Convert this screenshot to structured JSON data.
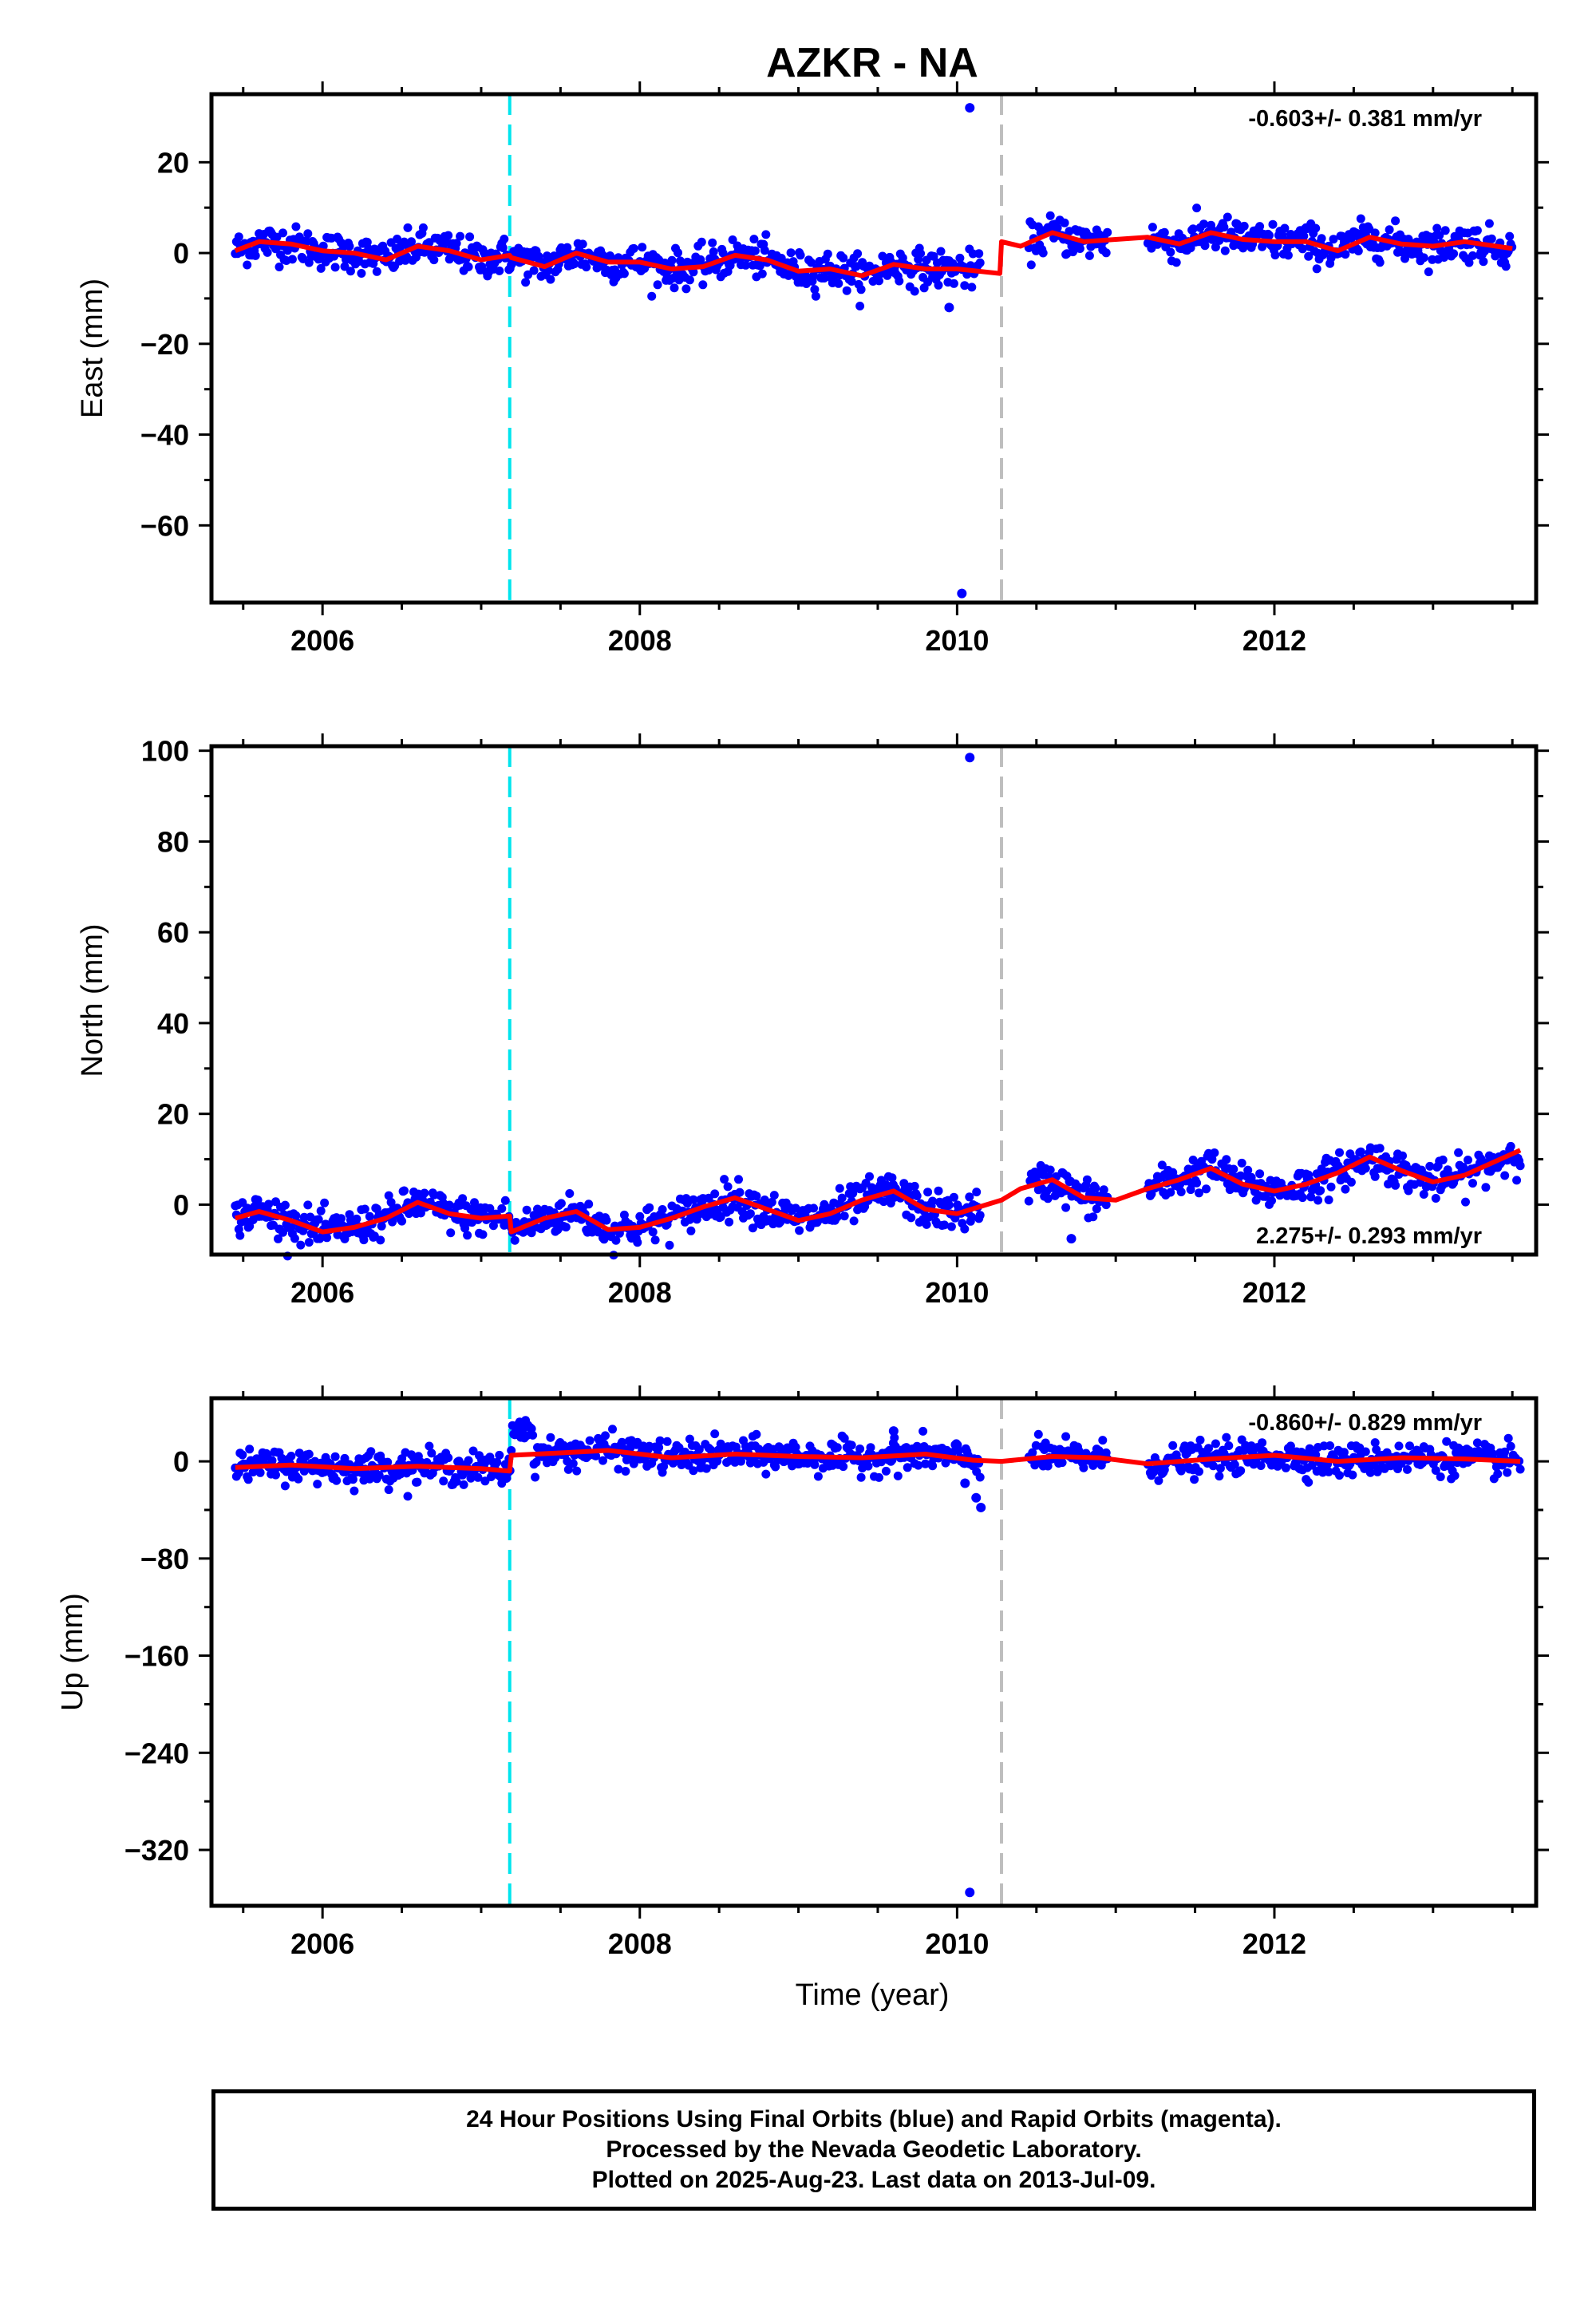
{
  "chart_data": {
    "title": "AZKR - NA",
    "xlabel": "Time (year)",
    "xlim": [
      2005.3,
      2013.65
    ],
    "x_ticks": [
      2006,
      2008,
      2010,
      2012
    ],
    "x_tick_labels": [
      "2006",
      "2008",
      "2010",
      "2012"
    ],
    "equipment_change_line": {
      "x": 2007.18,
      "color": "#00e5ee",
      "style": "dashed"
    },
    "earthquake_line": {
      "x": 2010.28,
      "color": "#bebebe",
      "style": "dashed"
    },
    "colors": {
      "final_orbits": "#0000ff",
      "rapid_orbits": "#ff00ff",
      "model_fit": "#ff0000"
    },
    "panels": [
      {
        "name": "East",
        "type": "scatter",
        "ylabel": "East (mm)",
        "ylim": [
          -77,
          35
        ],
        "y_ticks": [
          20,
          0,
          -20,
          -40,
          -60
        ],
        "y_tick_labels": [
          "20",
          "0",
          "−20",
          "−40",
          "−60"
        ],
        "rate_label": "-0.603+/- 0.381 mm/yr",
        "rate_position": "top-right",
        "model": {
          "x": [
            2005.45,
            2005.6,
            2005.8,
            2006.0,
            2006.2,
            2006.4,
            2006.6,
            2006.8,
            2007.0,
            2007.18,
            2007.19,
            2007.4,
            2007.6,
            2007.8,
            2008.0,
            2008.2,
            2008.4,
            2008.6,
            2008.8,
            2009.0,
            2009.2,
            2009.4,
            2009.6,
            2009.8,
            2010.0,
            2010.27,
            2010.28,
            2010.4,
            2010.6,
            2010.8,
            2011.0,
            2011.2,
            2011.4,
            2011.6,
            2011.8,
            2012.0,
            2012.2,
            2012.4,
            2012.6,
            2012.8,
            2013.0,
            2013.2,
            2013.5
          ],
          "y": [
            0.5,
            2.5,
            2.0,
            0.5,
            0.0,
            -1.5,
            1.5,
            0.5,
            -1.5,
            -0.5,
            -1.0,
            -3.0,
            0.0,
            -2.0,
            -2.0,
            -3.5,
            -3.0,
            -0.5,
            -1.5,
            -4.0,
            -3.5,
            -5.0,
            -2.5,
            -3.5,
            -3.5,
            -4.5,
            2.5,
            1.5,
            4.5,
            2.5,
            3.0,
            3.5,
            2.0,
            4.5,
            3.0,
            2.5,
            2.5,
            0.5,
            3.5,
            2.0,
            1.5,
            2.5,
            1.0
          ]
        },
        "outliers": [
          {
            "x": 2010.08,
            "y": 32
          },
          {
            "x": 2010.03,
            "y": -75
          },
          {
            "x": 2009.95,
            "y": -12
          }
        ]
      },
      {
        "name": "North",
        "type": "scatter",
        "ylabel": "North (mm)",
        "ylim": [
          -11,
          101
        ],
        "y_ticks": [
          100,
          80,
          60,
          40,
          20,
          0
        ],
        "y_tick_labels": [
          "100",
          "80",
          "60",
          "40",
          "20",
          "0"
        ],
        "rate_label": "2.275+/- 0.293 mm/yr",
        "rate_position": "bottom-right",
        "model": {
          "x": [
            2005.45,
            2005.6,
            2005.8,
            2006.0,
            2006.2,
            2006.4,
            2006.6,
            2006.8,
            2007.0,
            2007.18,
            2007.19,
            2007.4,
            2007.6,
            2007.8,
            2008.0,
            2008.2,
            2008.4,
            2008.6,
            2008.8,
            2009.0,
            2009.2,
            2009.4,
            2009.6,
            2009.8,
            2010.0,
            2010.28,
            2010.4,
            2010.6,
            2010.8,
            2011.0,
            2011.2,
            2011.4,
            2011.6,
            2011.8,
            2012.0,
            2012.2,
            2012.4,
            2012.6,
            2012.8,
            2013.0,
            2013.2,
            2013.55
          ],
          "y": [
            -3.0,
            -1.5,
            -3.5,
            -6.0,
            -5.0,
            -3.0,
            0.5,
            -2.0,
            -3.0,
            -2.5,
            -6.0,
            -3.0,
            -1.5,
            -5.5,
            -5.0,
            -3.0,
            -0.5,
            1.5,
            -1.0,
            -3.5,
            -2.0,
            1.0,
            3.0,
            -1.0,
            -2.0,
            1.0,
            3.5,
            5.5,
            1.5,
            1.0,
            3.5,
            5.5,
            8.0,
            4.5,
            3.0,
            4.5,
            7.0,
            10.5,
            7.5,
            5.0,
            6.5,
            12.0
          ]
        },
        "outliers": [
          {
            "x": 2010.08,
            "y": 98.5
          },
          {
            "x": 2010.72,
            "y": -7.5
          }
        ]
      },
      {
        "name": "Up",
        "type": "scatter",
        "ylabel": "Up (mm)",
        "ylim": [
          -366,
          52
        ],
        "y_ticks": [
          0,
          -80,
          -160,
          -240,
          -320
        ],
        "y_tick_labels": [
          "0",
          "−80",
          "−160",
          "−240",
          "−320"
        ],
        "rate_label": "-0.860+/- 0.829 mm/yr",
        "rate_position": "top-right",
        "model": {
          "x": [
            2005.45,
            2005.8,
            2006.2,
            2006.6,
            2007.0,
            2007.18,
            2007.19,
            2007.5,
            2007.8,
            2008.2,
            2008.6,
            2009.0,
            2009.4,
            2009.8,
            2010.1,
            2010.28,
            2010.6,
            2010.9,
            2011.2,
            2011.6,
            2012.0,
            2012.4,
            2012.8,
            2013.2,
            2013.55
          ],
          "y": [
            -5,
            -3,
            -6,
            -4,
            -6,
            -8,
            5,
            7,
            9,
            3,
            6,
            4,
            3,
            6,
            1,
            0,
            4,
            3,
            -2,
            2,
            5,
            0,
            3,
            2,
            0
          ]
        },
        "outliers": [
          {
            "x": 2009.6,
            "y": 25
          },
          {
            "x": 2010.08,
            "y": -355
          },
          {
            "x": 2010.05,
            "y": -18
          },
          {
            "x": 2010.12,
            "y": -30
          },
          {
            "x": 2010.15,
            "y": -38
          }
        ]
      }
    ]
  },
  "caption": {
    "line1": "24 Hour Positions Using Final Orbits (blue) and Rapid Orbits (magenta).",
    "line2": "Processed by the Nevada Geodetic Laboratory.",
    "line3": "Plotted on 2025-Aug-23. Last data on 2013-Jul-09."
  }
}
